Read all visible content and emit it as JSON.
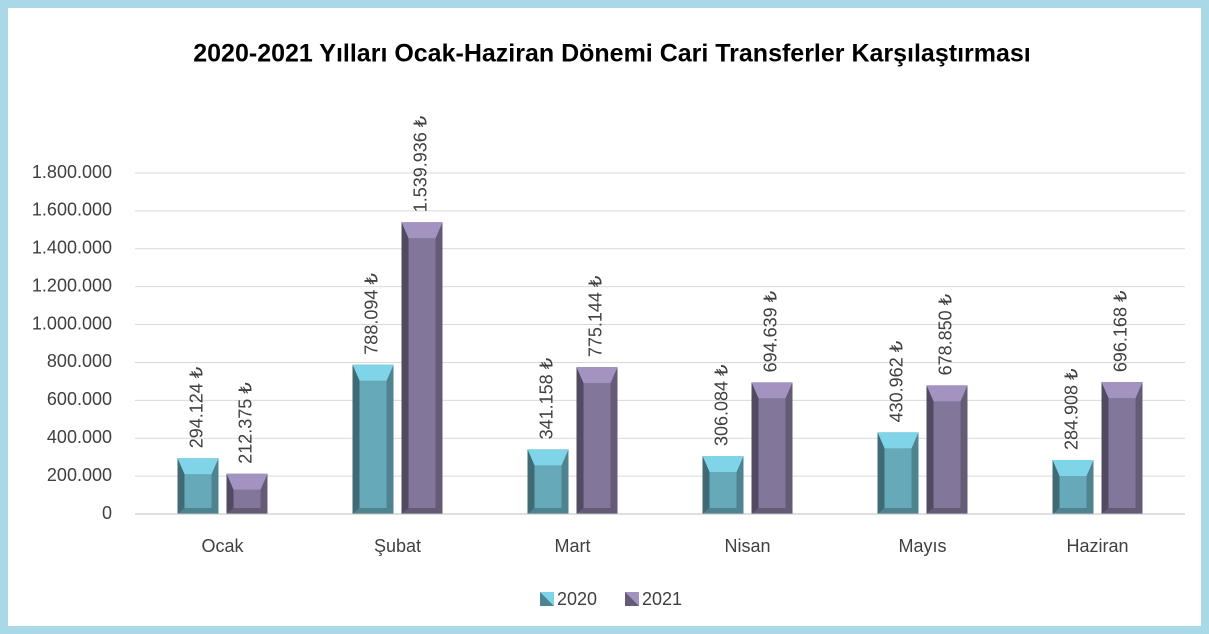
{
  "chart_data": {
    "type": "bar",
    "title": "2020-2021 Yılları Ocak-Haziran Dönemi Cari Transferler Karşılaştırması",
    "categories": [
      "Ocak",
      "Şubat",
      "Mart",
      "Nisan",
      "Mayıs",
      "Haziran"
    ],
    "series": [
      {
        "name": "2020",
        "color": "#7fd4e8",
        "values": [
          294124,
          788094,
          341158,
          306084,
          430962,
          284908
        ],
        "value_labels": [
          "294.124 ₺",
          "788.094 ₺",
          "341.158 ₺",
          "306.084 ₺",
          "430.962 ₺",
          "284.908 ₺"
        ]
      },
      {
        "name": "2021",
        "color": "#a393c0",
        "values": [
          212375,
          1539936,
          775144,
          694639,
          678850,
          696168
        ],
        "value_labels": [
          "212.375 ₺",
          "1.539.936 ₺",
          "775.144 ₺",
          "694.639 ₺",
          "678.850 ₺",
          "696.168 ₺"
        ]
      }
    ],
    "ylim": [
      0,
      1800000
    ],
    "yticks": [
      0,
      {
        "value": 200000,
        "label": "200.000"
      },
      {
        "value": 400000,
        "label": "400.000"
      },
      {
        "value": 600000,
        "label": "600.000"
      },
      {
        "value": 800000,
        "label": "800.000"
      },
      {
        "value": 1000000,
        "label": "1.000.000"
      },
      {
        "value": 1200000,
        "label": "1.200.000"
      },
      {
        "value": 1400000,
        "label": "1.400.000"
      },
      {
        "value": 1600000,
        "label": "1.600.000"
      },
      {
        "value": 1800000,
        "label": "1.800.000"
      }
    ],
    "grid": true,
    "legend": "bottom"
  }
}
